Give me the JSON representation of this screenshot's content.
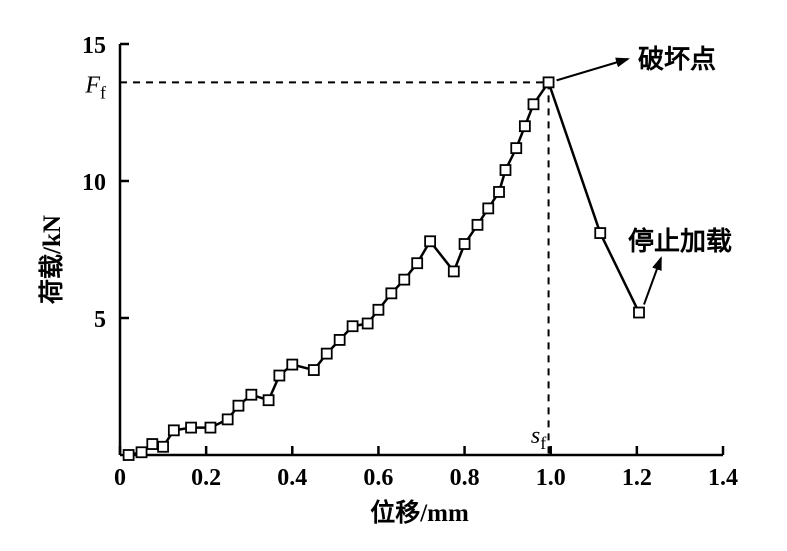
{
  "chart_data": {
    "type": "line",
    "xlabel": "位移/mm",
    "ylabel": "荷载/kN",
    "xlim": [
      0,
      1.4
    ],
    "ylim": [
      0,
      15
    ],
    "x_ticks": [
      "0",
      "0.2",
      "0.4",
      "0.6",
      "0.8",
      "1.0",
      "1.2",
      "1.4"
    ],
    "y_ticks": [
      "5",
      "10",
      "15"
    ],
    "grid": false,
    "marker": "square",
    "series": [
      {
        "points": [
          [
            0.02,
            0.0
          ],
          [
            0.05,
            0.1
          ],
          [
            0.075,
            0.4
          ],
          [
            0.1,
            0.3
          ],
          [
            0.125,
            0.9
          ],
          [
            0.165,
            1.0
          ],
          [
            0.21,
            1.0
          ],
          [
            0.25,
            1.3
          ],
          [
            0.275,
            1.8
          ],
          [
            0.305,
            2.2
          ],
          [
            0.345,
            2.0
          ],
          [
            0.37,
            2.9
          ],
          [
            0.4,
            3.3
          ],
          [
            0.45,
            3.1
          ],
          [
            0.48,
            3.7
          ],
          [
            0.51,
            4.2
          ],
          [
            0.54,
            4.7
          ],
          [
            0.575,
            4.8
          ],
          [
            0.6,
            5.3
          ],
          [
            0.63,
            5.9
          ],
          [
            0.66,
            6.4
          ],
          [
            0.69,
            7.0
          ],
          [
            0.72,
            7.8
          ],
          [
            0.775,
            6.7
          ],
          [
            0.8,
            7.7
          ],
          [
            0.83,
            8.4
          ],
          [
            0.855,
            9.0
          ],
          [
            0.88,
            9.6
          ],
          [
            0.895,
            10.4
          ],
          [
            0.92,
            11.2
          ],
          [
            0.94,
            12.0
          ],
          [
            0.96,
            12.8
          ],
          [
            0.995,
            13.6
          ],
          [
            1.115,
            8.1
          ],
          [
            1.205,
            5.2
          ]
        ]
      }
    ],
    "reference_markers": {
      "x_label": "s",
      "x_label_sub": "f",
      "x_value": 0.995,
      "y_label": "F",
      "y_label_sub": "f",
      "y_value": 13.6
    },
    "annotations": [
      {
        "text": "破坏点",
        "target": [
          0.995,
          13.6
        ]
      },
      {
        "text": "停止加载",
        "target": [
          1.205,
          5.2
        ]
      }
    ]
  }
}
